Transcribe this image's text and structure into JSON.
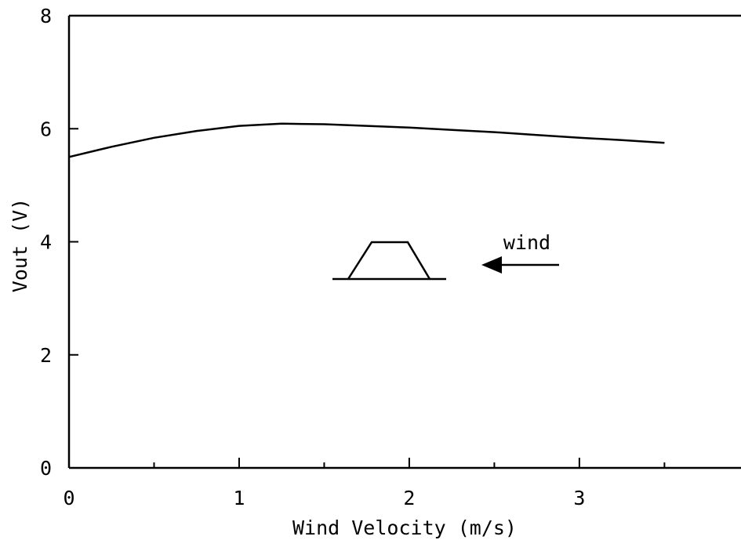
{
  "chart_data": {
    "type": "line",
    "title": "",
    "xlabel": "Wind Velocity (m/s)",
    "ylabel": "Vout (V)",
    "xlim": [
      0,
      3.95
    ],
    "ylim": [
      0,
      8
    ],
    "x_ticks": [
      0,
      1,
      2,
      3
    ],
    "x_minor_ticks": [
      0.5,
      1.5,
      2.5,
      3.5
    ],
    "y_ticks": [
      0,
      2,
      4,
      6,
      8
    ],
    "grid": false,
    "legend": "none",
    "series": [
      {
        "color": "#000000",
        "x": [
          0,
          0.25,
          0.5,
          0.75,
          1.0,
          1.25,
          1.5,
          1.75,
          2.0,
          2.25,
          2.5,
          2.75,
          3.0,
          3.25,
          3.5
        ],
        "y": [
          5.5,
          5.68,
          5.84,
          5.96,
          6.05,
          6.09,
          6.08,
          6.05,
          6.02,
          5.98,
          5.94,
          5.89,
          5.84,
          5.8,
          5.75
        ]
      }
    ],
    "annotations": [
      {
        "text": "wind"
      }
    ]
  }
}
